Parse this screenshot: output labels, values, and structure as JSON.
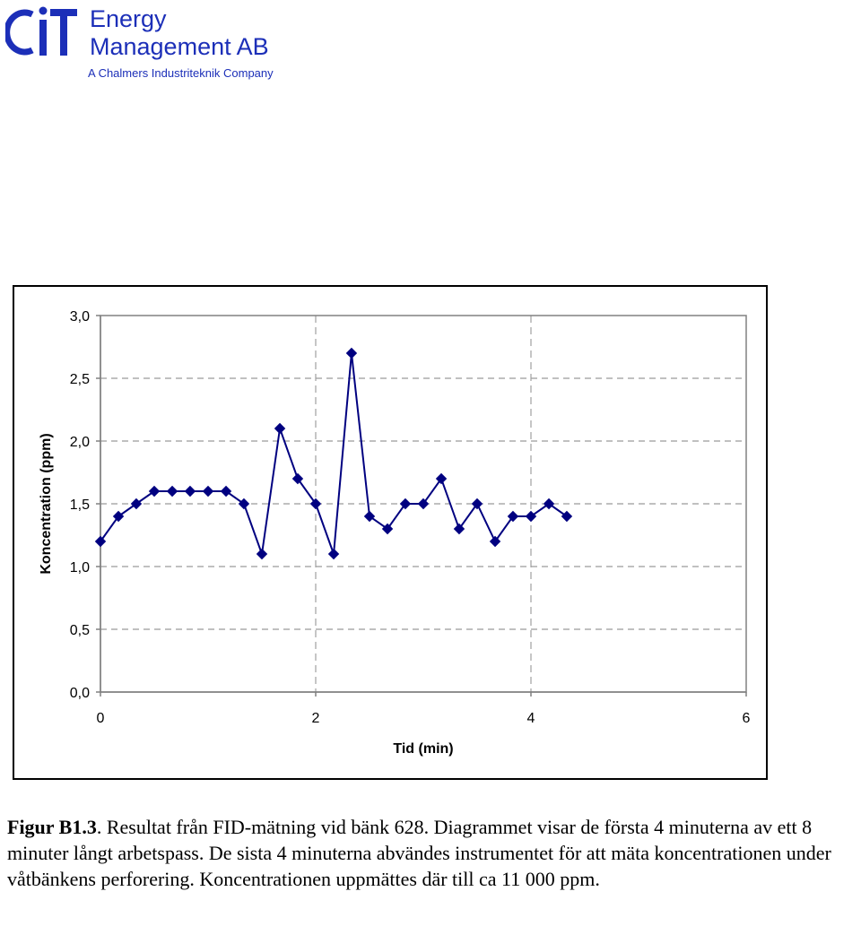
{
  "logo": {
    "mark_text": "CIT",
    "name_line1": "Energy",
    "name_line2": "Management AB",
    "tagline": "A Chalmers Industriteknik Company",
    "color": "#1c2fb8"
  },
  "chart_data": {
    "type": "line",
    "xlabel": "Tid (min)",
    "ylabel": "Koncentration (ppm)",
    "xlim": [
      0,
      6
    ],
    "ylim": [
      0,
      3
    ],
    "xticks": [
      0,
      2,
      4,
      6
    ],
    "xtick_labels": [
      "0",
      "2",
      "4",
      "6"
    ],
    "yticks": [
      0,
      0.5,
      1,
      1.5,
      2,
      2.5,
      3
    ],
    "ytick_labels": [
      "0,0",
      "0,5",
      "1,0",
      "1,5",
      "2,0",
      "2,5",
      "3,0"
    ],
    "grid": "dashed gridlines",
    "marker": "diamond",
    "series_color": "#000080",
    "series": [
      {
        "x": [
          0,
          0.167,
          0.333,
          0.5,
          0.667,
          0.833,
          1.0,
          1.167,
          1.333,
          1.5,
          1.667,
          1.833,
          2.0,
          2.167,
          2.333,
          2.5,
          2.667,
          2.833,
          3.0,
          3.167,
          3.333,
          3.5,
          3.667,
          3.833,
          4.0,
          4.167,
          4.333
        ],
        "values": [
          1.2,
          1.4,
          1.5,
          1.6,
          1.6,
          1.6,
          1.6,
          1.6,
          1.5,
          1.1,
          2.1,
          1.7,
          1.5,
          1.1,
          2.7,
          1.4,
          1.3,
          1.5,
          1.5,
          1.7,
          1.3,
          1.5,
          1.2,
          1.4,
          1.4,
          1.5,
          1.4
        ]
      }
    ]
  },
  "caption": {
    "label": "Figur B1.3",
    "text": ". Resultat från FID-mätning vid bänk 628. Diagrammet visar de första 4 minuterna av ett 8 minuter långt arbetspass. De sista 4 minuterna abvändes instrumentet för att mäta koncentrationen under våtbänkens perforering. Koncentrationen uppmättes där till ca 11 000 ppm."
  }
}
